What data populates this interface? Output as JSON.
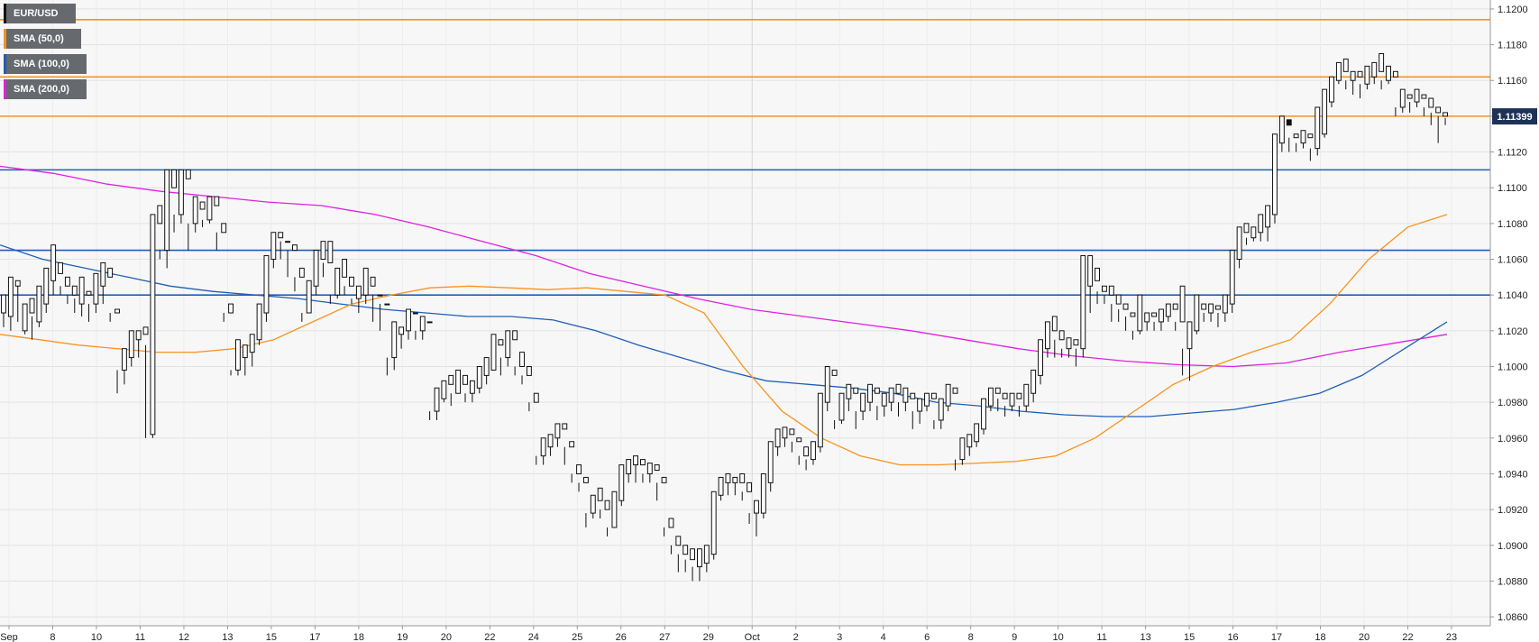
{
  "legend": [
    {
      "label": "EUR/USD",
      "color": "#111111"
    },
    {
      "label": "SMA (50,0)",
      "color": "#f7931e"
    },
    {
      "label": "SMA (100,0)",
      "color": "#1f5fb5"
    },
    {
      "label": "SMA (200,0)",
      "color": "#e020e0"
    }
  ],
  "price_badge": "1.11399",
  "chart_data": {
    "type": "candlestick",
    "title": "",
    "ylim": [
      1.0855,
      1.1205
    ],
    "grid": true,
    "y_ticks": [
      "1.1200",
      "1.1180",
      "1.1160",
      "1.1140",
      "1.1120",
      "1.1100",
      "1.1080",
      "1.1060",
      "1.1040",
      "1.1020",
      "1.1000",
      "1.0980",
      "1.0960",
      "1.0940",
      "1.0920",
      "1.0900",
      "1.0880",
      "1.0860"
    ],
    "x_ticks": [
      "Sep",
      "8",
      "10",
      "11",
      "12",
      "13",
      "15",
      "17",
      "18",
      "19",
      "20",
      "22",
      "24",
      "25",
      "26",
      "27",
      "29",
      "Oct",
      "2",
      "3",
      "4",
      "6",
      "8",
      "9",
      "10",
      "11",
      "13",
      "15",
      "16",
      "17",
      "18",
      "20",
      "22",
      "23"
    ],
    "last_price": 1.11399,
    "horizontal_levels": [
      {
        "value": 1.1194,
        "color": "#f7931e"
      },
      {
        "value": 1.1162,
        "color": "#f7931e"
      },
      {
        "value": 1.114,
        "color": "#f7931e"
      },
      {
        "value": 1.111,
        "color": "#1f5fb5"
      },
      {
        "value": 1.1065,
        "color": "#1f5fb5"
      },
      {
        "value": 1.104,
        "color": "#1f5fb5"
      }
    ],
    "candles": [
      1.103,
      1.1035,
      1.1022,
      1.104,
      1.1028,
      1.1032,
      1.102,
      1.105,
      1.1045,
      1.1045,
      1.1025,
      1.1048,
      1.102,
      1.103,
      1.1018,
      1.1035,
      1.103,
      1.1028,
      1.1015,
      1.1038,
      1.1025,
      1.1038,
      1.1022,
      1.1045,
      1.1035,
      1.105,
      1.103,
      1.1055,
      1.1048,
      1.1052,
      1.104,
      1.1068,
      1.1052,
      1.1045,
      1.104,
      1.1058,
      1.1045,
      1.104,
      1.1035,
      1.105,
      1.104,
      1.1038,
      1.103,
      1.1045,
      1.1035,
      1.104,
      1.1028,
      1.105,
      1.104,
      1.1035,
      1.1025,
      1.1042,
      1.1035,
      1.1045,
      1.103,
      1.1052,
      1.1045,
      1.105,
      1.1035,
      1.1058,
      1.105,
      1.103,
      1.1025,
      1.1055,
      1.103,
      1.0998,
      1.0985,
      1.1032,
      1.0998,
      1.1005,
      1.099,
      1.101,
      1.1005,
      1.1015,
      1.1,
      1.102,
      1.1015,
      1.1018,
      1.1005,
      1.102,
      1.1018,
      1.1012,
      1.096,
      1.1022,
      1.0962,
      1.108,
      1.096,
      1.1085,
      1.108,
      1.1065,
      1.106,
      1.109,
      1.1065,
      1.11,
      1.1055,
      1.111,
      1.11,
      1.1085,
      1.1075,
      1.111,
      1.1085,
      1.1105,
      1.108,
      1.111,
      1.1105,
      1.108,
      1.1065,
      1.111,
      1.108,
      1.1088,
      1.1075,
      1.1095,
      1.1088,
      1.1082,
      1.1078,
      1.1092,
      1.1082,
      1.109,
      1.108,
      1.1095,
      1.109,
      1.1075,
      1.1065,
      1.1095,
      1.1075,
      1.103,
      1.1025,
      1.108,
      1.103,
      1.0998,
      1.0995,
      1.1035,
      1.0998,
      1.1005,
      1.0995,
      1.1015,
      1.1005,
      1.1008,
      1.0995,
      1.1012,
      1.1008,
      1.1015,
      1.1,
      1.1018,
      1.1015,
      1.103,
      1.1012,
      1.1035,
      1.103,
      1.106,
      1.1025,
      1.1062,
      1.106,
      1.1072,
      1.1055,
      1.1075,
      1.1072,
      1.107,
      1.106,
      1.1075,
      1.107,
      1.1065,
      1.105,
      1.107,
      1.1065,
      1.105,
      1.1042,
      1.1068,
      1.105,
      1.103,
      1.1025,
      1.1055,
      1.103,
      1.1045,
      1.103,
      1.1048,
      1.1045,
      1.106,
      1.104,
      1.1065,
      1.106,
      1.1058,
      1.105,
      1.107,
      1.1058,
      1.104,
      1.1035,
      1.107,
      1.104,
      1.105,
      1.1038,
      1.1055,
      1.105,
      1.1045,
      1.104,
      1.106,
      1.1045,
      1.1038,
      1.1035,
      1.105,
      1.1038,
      1.104,
      1.103,
      1.1045,
      1.104,
      1.1045,
      1.1035,
      1.1055,
      1.1045,
      1.104,
      1.1025,
      1.105,
      1.104,
      1.1035,
      1.102,
      1.104,
      1.1035,
      1.1005,
      1.0995,
      1.1035,
      1.1005,
      1.1018,
      1.0998,
      1.1025,
      1.1018,
      1.102,
      1.101,
      1.1022,
      1.102,
      1.103,
      1.1015,
      1.1032,
      1.103,
      1.102,
      1.1015,
      1.103,
      1.102,
      1.1025,
      1.1015,
      1.1028,
      1.1025,
      1.0975,
      1.097,
      1.1025,
      1.0975,
      1.0982,
      1.097,
      1.0988,
      1.0982,
      1.099,
      1.098,
      1.0992,
      1.099,
      1.0985,
      1.0978,
      1.0995,
      1.0985,
      1.099,
      1.0985,
      1.0998,
      1.099,
      1.0985,
      1.098,
      1.0995,
      1.0985,
      1.0988,
      1.098,
      1.0992,
      1.0988,
      1.0995,
      1.0985,
      1.1,
      1.0995,
      1.0998,
      1.099,
      1.1005,
      1.0998,
      1.1012,
      1.0998,
      1.1018,
      1.1012,
      1.1005,
      1.0995,
      1.1015,
      1.1005,
      1.1015,
      1.1,
      1.102,
      1.1015,
      1.1,
      1.0995,
      1.102,
      1.1,
      1.0995,
      1.099,
      1.1008,
      1.0995,
      1.098,
      1.0975,
      1.1,
      1.098,
      1.095,
      1.0945,
      1.0985,
      1.095,
      1.0955,
      1.0945,
      1.096,
      1.0955,
      1.096,
      1.095,
      1.0962,
      1.096,
      1.0965,
      1.0955,
      1.0968,
      1.0965,
      1.0955,
      1.0945,
      1.0968,
      1.0955,
      1.094,
      1.0935,
      1.0958,
      1.094,
      1.0935,
      1.093,
      1.0945,
      1.0935,
      1.0918,
      1.091,
      1.0938,
      1.0918,
      1.0925,
      1.0915,
      1.0928,
      1.0925,
      1.092,
      1.0915,
      1.0932,
      1.092,
      1.091,
      1.0905,
      1.0925,
      1.091,
      1.0925,
      1.091,
      1.093,
      1.0925,
      1.094,
      1.0922,
      1.0945,
      1.094,
      1.0945,
      1.0935,
      1.0948,
      1.0945,
      1.0945,
      1.0935,
      1.095,
      1.0945,
      1.094,
      1.0935,
      1.0948,
      1.094,
      1.0942,
      1.0935,
      1.0946,
      1.0942,
      1.0935,
      1.0925,
      1.0945,
      1.0935,
      1.091,
      1.0905,
      1.0938,
      1.091,
      1.09,
      1.0895,
      1.0915,
      1.09,
      1.0895,
      1.0885,
      1.0905,
      1.0895,
      1.0892,
      1.0885,
      1.09,
      1.0892,
      1.0888,
      1.088,
      1.0898,
      1.0888,
      1.089,
      1.088,
      1.0898,
      1.089,
      1.0895,
      1.0885,
      1.09,
      1.0895,
      1.0928,
      1.0892,
      1.093,
      1.0928,
      1.0935,
      1.0925,
      1.0938,
      1.0935,
      1.0935,
      1.0928,
      1.094,
      1.0935,
      1.0935,
      1.0928,
      1.0938,
      1.0935,
      1.093,
      1.0925,
      1.094,
      1.093,
      1.0918,
      1.0912,
      1.0935,
      1.0918,
      1.0918,
      1.0905,
      1.0925,
      1.0918,
      1.0935,
      1.0915,
      1.094,
      1.0935,
      1.0955,
      1.093,
      1.0958,
      1.0955,
      1.096,
      1.095,
      1.0965,
      1.096,
      1.0962,
      1.0955,
      1.0966,
      1.0962,
      1.0958,
      1.0952,
      1.0965,
      1.0958,
      1.095,
      1.0945,
      1.096,
      1.095,
      1.0948,
      1.0942,
      1.0955,
      1.0948,
      1.0955,
      1.0945,
      1.0958,
      1.0955,
      1.098,
      1.0952,
      1.0985,
      1.098,
      1.0995,
      1.0975,
      1.1,
      1.0995,
      1.097,
      1.0965,
      1.0998,
      1.097,
      1.0982,
      1.0968,
      1.0985,
      1.0982,
      1.0985,
      1.0975,
      1.099,
      1.0985,
      1.0975,
      1.0965,
      1.0988,
      1.0975,
      1.098,
      1.097,
      1.0985,
      1.098,
      1.0985,
      1.0975,
      1.099,
      1.0985,
      1.0978,
      1.097,
      1.0988,
      1.0978,
      1.098,
      1.0972,
      1.0985,
      1.098,
      1.0985,
      1.0975,
      1.0988,
      1.0985,
      1.098,
      1.0972,
      1.099,
      1.098,
      1.0982,
      1.0975,
      1.0988,
      1.0982,
      1.0975,
      1.0965,
      1.0985,
      1.0975,
      1.0978,
      1.0968,
      1.0982,
      1.0978,
      1.0982,
      1.0975,
      1.0985,
      1.0982,
      1.097,
      1.0965,
      1.0985,
      1.097,
      1.0978,
      1.0965,
      1.0982,
      1.0978,
      1.0985,
      1.0975,
      1.099,
      1.0985,
      1.0948,
      1.0942,
      1.0988,
      1.0948,
      1.0955,
      1.0945,
      1.096,
      1.0955,
      1.0958,
      1.095,
      1.0962,
      1.0958,
      1.0965,
      1.0955,
      1.0968,
      1.0965,
      1.0978,
      1.0962,
      1.0982,
      1.0978,
      1.0985,
      1.0975,
      1.0988,
      1.0985,
      1.0982,
      1.0975,
      1.0988,
      1.0982,
      1.0978,
      1.0972,
      1.0985,
      1.0978,
      1.0982,
      1.0975,
      1.0985,
      1.0982,
      1.0978,
      1.0972,
      1.0985,
      1.0978,
      1.0985,
      1.0975,
      1.099,
      1.0985,
      1.0995,
      1.098,
      1.0998,
      1.0995,
      1.101,
      1.099,
      1.1015,
      1.101,
      1.102,
      1.1005,
      1.1025,
      1.102,
      1.1015,
      1.1005,
      1.1028,
      1.1015,
      1.101,
      1.1005,
      1.102,
      1.101,
      1.1012,
      1.1005,
      1.1016,
      1.1012,
      1.101,
      1.1,
      1.1015,
      1.101,
      1.1045,
      1.1005,
      1.1062,
      1.1045,
      1.1048,
      1.103,
      1.1062,
      1.1048,
      1.1042,
      1.1035,
      1.1055,
      1.1042,
      1.104,
      1.1035,
      1.1045,
      1.104,
      1.1035,
      1.1025,
      1.1045,
      1.1035,
      1.1032,
      1.1025,
      1.104,
      1.1032,
      1.1028,
      1.102,
      1.1035,
      1.1028,
      1.102,
      1.1015,
      1.103,
      1.102,
      1.1025,
      1.1018,
      1.104,
      1.1025,
      1.1028,
      1.102,
      1.103,
      1.1028,
      1.1025,
      1.102,
      1.103,
      1.1025,
      1.1028,
      1.102,
      1.1032,
      1.1028,
      1.1032,
      1.1025,
      1.1035,
      1.1032,
      1.1025,
      1.102,
      1.1035,
      1.1025,
      1.101,
      1.0995,
      1.1045,
      1.101,
      1.102,
      1.0992,
      1.1025,
      1.102,
      1.1032,
      1.1018,
      1.104,
      1.1032,
      1.103,
      1.1025,
      1.1035,
      1.103,
      1.1032,
      1.1025,
      1.1035,
      1.1032,
      1.103,
      1.1022,
      1.1034,
      1.103,
      1.1035,
      1.1025,
      1.104,
      1.1035,
      1.106,
      1.103,
      1.1065,
      1.106,
      1.1075,
      1.1055,
      1.1078,
      1.1075,
      1.1072,
      1.1068,
      1.108,
      1.1072,
      1.1075,
      1.107,
      1.1078,
      1.1075,
      1.1078,
      1.107,
      1.1085,
      1.1078,
      1.1085,
      1.107,
      1.109,
      1.1085,
      1.1125,
      1.108,
      1.113,
      1.1125,
      1.1138,
      1.112,
      1.114,
      1.1138,
      1.1128,
      1.112,
      1.1135,
      1.1128,
      1.1125,
      1.112,
      1.113,
      1.1125,
      1.1128,
      1.1122,
      1.1132,
      1.1128,
      1.1122,
      1.1115,
      1.113,
      1.1122,
      1.113,
      1.1118,
      1.1145,
      1.113,
      1.1148,
      1.1128,
      1.1155,
      1.1148,
      1.116,
      1.1145,
      1.1162,
      1.116,
      1.1165,
      1.1158,
      1.117,
      1.1165,
      1.116,
      1.1155,
      1.1172,
      1.116,
      1.1162,
      1.1152,
      1.1165,
      1.1162,
      1.1158,
      1.115,
      1.1165,
      1.1158,
      1.1162,
      1.1155,
      1.1168,
      1.1162,
      1.1165,
      1.1158,
      1.117,
      1.1165,
      1.116,
      1.1155,
      1.1175,
      1.116,
      1.1162,
      1.1158,
      1.1168,
      1.1162,
      1.1145,
      1.114,
      1.1165,
      1.1145,
      1.115,
      1.1142,
      1.1155,
      1.115,
      1.1148,
      1.1142,
      1.1152,
      1.1148,
      1.115,
      1.1145,
      1.1155,
      1.115,
      1.1145,
      1.114,
      1.1152,
      1.1145,
      1.1142,
      1.1135,
      1.115,
      1.1142,
      1.114,
      1.1125,
      1.1145,
      1.114,
      1.1139,
      1.1135,
      1.1142,
      1.1139
    ],
    "sma50": [
      1.1018,
      1.1015,
      1.1012,
      1.101,
      1.1008,
      1.1008,
      1.101,
      1.1015,
      1.1025,
      1.1035,
      1.104,
      1.1044,
      1.1045,
      1.1044,
      1.1043,
      1.1044,
      1.1042,
      1.104,
      1.103,
      1.1,
      1.0975,
      1.096,
      1.095,
      1.0945,
      1.0945,
      1.0946,
      1.0947,
      1.095,
      1.096,
      1.0975,
      1.099,
      1.1,
      1.1008,
      1.1015,
      1.1035,
      1.106,
      1.1078,
      1.1085
    ],
    "sma100": [
      1.1068,
      1.106,
      1.1055,
      1.105,
      1.1045,
      1.1042,
      1.104,
      1.1038,
      1.1035,
      1.1032,
      1.103,
      1.1028,
      1.1028,
      1.1026,
      1.102,
      1.1012,
      1.1005,
      1.0998,
      1.0992,
      1.099,
      1.0988,
      1.0985,
      1.098,
      1.0978,
      1.0975,
      1.0973,
      1.0972,
      1.0972,
      1.0974,
      1.0976,
      1.098,
      1.0985,
      1.0995,
      1.101,
      1.1025
    ],
    "sma200": [
      1.1112,
      1.1108,
      1.1102,
      1.1098,
      1.1095,
      1.1092,
      1.109,
      1.1085,
      1.1078,
      1.107,
      1.1062,
      1.1052,
      1.1045,
      1.1038,
      1.1032,
      1.1028,
      1.1024,
      1.102,
      1.1015,
      1.101,
      1.1006,
      1.1003,
      1.1001,
      1.1,
      1.1002,
      1.1008,
      1.1013,
      1.1018
    ]
  }
}
